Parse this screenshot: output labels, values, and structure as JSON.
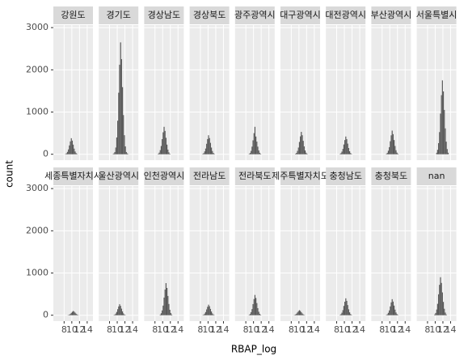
{
  "chart_data": {
    "type": "histogram",
    "xlabel": "RBAP_log",
    "ylabel": "count",
    "color": "#595959",
    "grid": true,
    "xlim": [
      5.2,
      15.5
    ],
    "xticks": [
      8,
      10,
      12,
      14
    ],
    "ylim": [
      -140,
      3060
    ],
    "yticks": [
      0,
      1000,
      2000,
      3000
    ],
    "bins": [
      7,
      7.25,
      7.5,
      7.75,
      8,
      8.25,
      8.5,
      8.75,
      9,
      9.25,
      9.5,
      9.75,
      10,
      10.25,
      10.5,
      10.75,
      11,
      11.25,
      11.5,
      11.75,
      12,
      12.25,
      12.5,
      12.75,
      13,
      13.25,
      13.5,
      13.75,
      14,
      14.25,
      14.5
    ],
    "facets": [
      {
        "name": "강원도",
        "counts": [
          0,
          0,
          0,
          0,
          0,
          8,
          23,
          57,
          114,
          209,
          304,
          380,
          323,
          228,
          133,
          65,
          27,
          8,
          0,
          0,
          0,
          0,
          0,
          0,
          0,
          0,
          0,
          0,
          0,
          0
        ]
      },
      {
        "name": "경기도",
        "counts": [
          0,
          0,
          0,
          0,
          0,
          0,
          0,
          5,
          20,
          53,
          159,
          398,
          795,
          1458,
          2120,
          2650,
          2253,
          1590,
          928,
          451,
          186,
          53,
          20,
          5,
          0,
          0,
          0,
          0,
          0,
          0
        ]
      },
      {
        "name": "경상남도",
        "counts": [
          0,
          0,
          0,
          0,
          0,
          0,
          0,
          13,
          39,
          98,
          195,
          358,
          520,
          650,
          553,
          390,
          228,
          111,
          46,
          13,
          0,
          0,
          0,
          0,
          0,
          0,
          0,
          0,
          0,
          0
        ]
      },
      {
        "name": "경상북도",
        "counts": [
          0,
          0,
          0,
          0,
          0,
          0,
          9,
          27,
          68,
          135,
          248,
          360,
          450,
          383,
          270,
          158,
          77,
          32,
          9,
          0,
          0,
          0,
          0,
          0,
          0,
          0,
          0,
          0,
          0,
          0
        ]
      },
      {
        "name": "광주광역시",
        "counts": [
          0,
          0,
          0,
          0,
          0,
          0,
          0,
          10,
          30,
          80,
          180,
          330,
          500,
          650,
          420,
          300,
          180,
          90,
          35,
          10,
          0,
          0,
          0,
          0,
          0,
          0,
          0,
          0,
          0,
          0
        ]
      },
      {
        "name": "대구광역시",
        "counts": [
          0,
          0,
          0,
          0,
          0,
          0,
          0,
          0,
          11,
          32,
          80,
          159,
          292,
          424,
          530,
          451,
          318,
          186,
          90,
          37,
          11,
          0,
          0,
          0,
          0,
          0,
          0,
          0,
          0,
          0
        ]
      },
      {
        "name": "대전광역시",
        "counts": [
          0,
          0,
          0,
          0,
          0,
          0,
          0,
          8,
          25,
          63,
          126,
          231,
          336,
          420,
          357,
          252,
          147,
          71,
          29,
          8,
          0,
          0,
          0,
          0,
          0,
          0,
          0,
          0,
          0,
          0
        ]
      },
      {
        "name": "부산광역시",
        "counts": [
          0,
          0,
          0,
          0,
          0,
          0,
          0,
          0,
          11,
          34,
          84,
          168,
          308,
          448,
          560,
          476,
          336,
          196,
          95,
          39,
          11,
          0,
          0,
          0,
          0,
          0,
          0,
          0,
          0,
          0
        ]
      },
      {
        "name": "서울특별시",
        "counts": [
          0,
          0,
          0,
          0,
          0,
          0,
          0,
          0,
          0,
          0,
          0,
          0,
          0,
          35,
          105,
          263,
          525,
          963,
          1400,
          1750,
          1488,
          1050,
          613,
          298,
          123,
          35,
          0,
          0,
          0,
          0
        ]
      },
      {
        "name": "세종특별자치시",
        "counts": [
          0,
          0,
          0,
          0,
          0,
          0,
          0,
          2,
          6,
          15,
          30,
          55,
          80,
          100,
          85,
          60,
          35,
          17,
          7,
          2,
          0,
          0,
          0,
          0,
          0,
          0,
          0,
          0,
          0,
          0
        ]
      },
      {
        "name": "울산광역시",
        "counts": [
          0,
          0,
          0,
          0,
          0,
          0,
          0,
          0,
          5,
          16,
          39,
          78,
          143,
          208,
          260,
          221,
          156,
          91,
          44,
          18,
          5,
          0,
          0,
          0,
          0,
          0,
          0,
          0,
          0,
          0
        ]
      },
      {
        "name": "인천광역시",
        "counts": [
          0,
          0,
          0,
          0,
          0,
          0,
          0,
          0,
          0,
          15,
          46,
          114,
          228,
          418,
          608,
          760,
          646,
          456,
          266,
          129,
          53,
          15,
          0,
          0,
          0,
          0,
          0,
          0,
          0,
          0
        ]
      },
      {
        "name": "전라남도",
        "counts": [
          0,
          0,
          0,
          0,
          0,
          0,
          5,
          15,
          38,
          75,
          138,
          200,
          250,
          213,
          150,
          88,
          43,
          18,
          5,
          0,
          0,
          0,
          0,
          0,
          0,
          0,
          0,
          0,
          0,
          0
        ]
      },
      {
        "name": "전라북도",
        "counts": [
          0,
          0,
          0,
          0,
          0,
          0,
          0,
          10,
          29,
          72,
          144,
          264,
          384,
          480,
          408,
          288,
          168,
          82,
          34,
          10,
          0,
          0,
          0,
          0,
          0,
          0,
          0,
          0,
          0,
          0
        ]
      },
      {
        "name": "제주특별자치도",
        "counts": [
          0,
          0,
          0,
          0,
          0,
          0,
          2,
          7,
          18,
          36,
          66,
          96,
          120,
          102,
          72,
          42,
          20,
          8,
          2,
          0,
          0,
          0,
          0,
          0,
          0,
          0,
          0,
          0,
          0,
          0
        ]
      },
      {
        "name": "충청남도",
        "counts": [
          0,
          0,
          0,
          0,
          0,
          0,
          0,
          8,
          24,
          60,
          120,
          220,
          320,
          400,
          340,
          240,
          140,
          68,
          28,
          8,
          0,
          0,
          0,
          0,
          0,
          0,
          0,
          0,
          0,
          0
        ]
      },
      {
        "name": "충청북도",
        "counts": [
          0,
          0,
          0,
          0,
          0,
          0,
          0,
          0,
          8,
          23,
          57,
          114,
          209,
          304,
          380,
          323,
          228,
          133,
          65,
          27,
          8,
          0,
          0,
          0,
          0,
          0,
          0,
          0,
          0,
          0
        ]
      },
      {
        "name": "nan",
        "counts": [
          0,
          0,
          0,
          0,
          0,
          0,
          0,
          0,
          0,
          0,
          0,
          18,
          54,
          135,
          270,
          495,
          720,
          900,
          765,
          540,
          315,
          153,
          63,
          18,
          0,
          0,
          0,
          0,
          0,
          0
        ]
      }
    ]
  }
}
